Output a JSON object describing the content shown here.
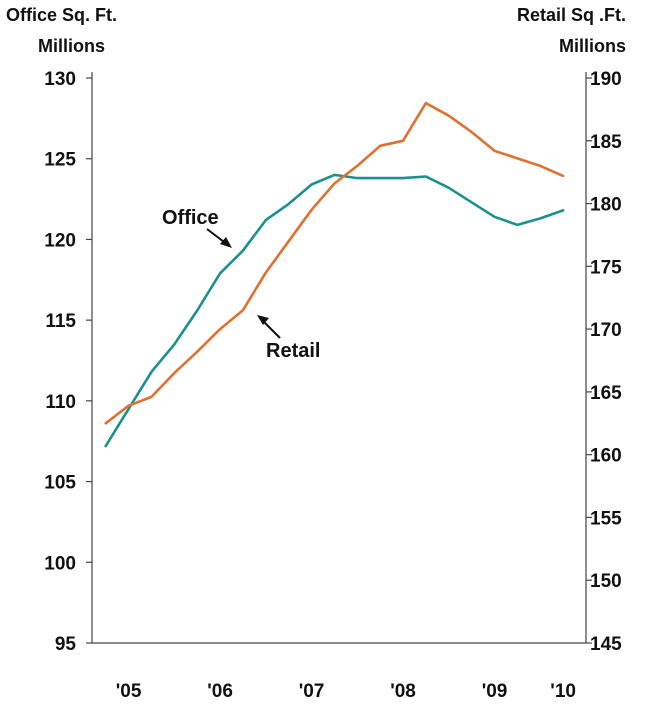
{
  "chart_data": {
    "type": "line",
    "left_axis": {
      "title_line1": "Office Sq. Ft.",
      "title_line2": "Millions",
      "min": 95,
      "max": 130,
      "ticks": [
        95,
        100,
        105,
        110,
        115,
        120,
        125,
        130
      ]
    },
    "right_axis": {
      "title_line1": "Retail Sq .Ft.",
      "title_line2": "Millions",
      "min": 145,
      "max": 190,
      "ticks": [
        145,
        150,
        155,
        160,
        165,
        170,
        175,
        180,
        185,
        190
      ]
    },
    "x_axis": {
      "min": 2004.6,
      "max": 2010.0,
      "tick_labels": [
        {
          "label": "'05",
          "x": 2005.0
        },
        {
          "label": "'06",
          "x": 2006.0
        },
        {
          "label": "'07",
          "x": 2007.0
        },
        {
          "label": "'08",
          "x": 2008.0
        },
        {
          "label": "'09",
          "x": 2009.0
        },
        {
          "label": "'10",
          "x": 2009.75
        }
      ]
    },
    "series": [
      {
        "name": "Office",
        "axis": "left",
        "color": "#1a9090",
        "x": [
          2004.75,
          2005.0,
          2005.25,
          2005.5,
          2005.75,
          2006.0,
          2006.25,
          2006.5,
          2006.75,
          2007.0,
          2007.25,
          2007.5,
          2007.75,
          2008.0,
          2008.25,
          2008.5,
          2008.75,
          2009.0,
          2009.25,
          2009.5,
          2009.75
        ],
        "values": [
          107.2,
          109.5,
          111.8,
          113.5,
          115.6,
          117.9,
          119.3,
          121.2,
          122.2,
          123.4,
          124.0,
          123.8,
          123.8,
          123.8,
          123.9,
          123.2,
          122.3,
          121.4,
          120.9,
          121.3,
          121.8
        ]
      },
      {
        "name": "Retail",
        "axis": "right",
        "color": "#e07030",
        "x": [
          2004.75,
          2005.0,
          2005.25,
          2005.5,
          2005.75,
          2006.0,
          2006.25,
          2006.5,
          2006.75,
          2007.0,
          2007.25,
          2007.5,
          2007.75,
          2008.0,
          2008.25,
          2008.5,
          2008.75,
          2009.0,
          2009.25,
          2009.5,
          2009.75
        ],
        "values": [
          162.5,
          163.9,
          164.6,
          166.5,
          168.2,
          170.0,
          171.5,
          174.5,
          177.0,
          179.5,
          181.6,
          183.0,
          184.6,
          185.0,
          188.0,
          187.0,
          185.7,
          184.2,
          183.6,
          183.0,
          182.2
        ]
      }
    ],
    "annotations": [
      {
        "text": "Office",
        "series": "Office"
      },
      {
        "text": "Retail",
        "series": "Retail"
      }
    ],
    "grid": false,
    "legend": "none"
  }
}
